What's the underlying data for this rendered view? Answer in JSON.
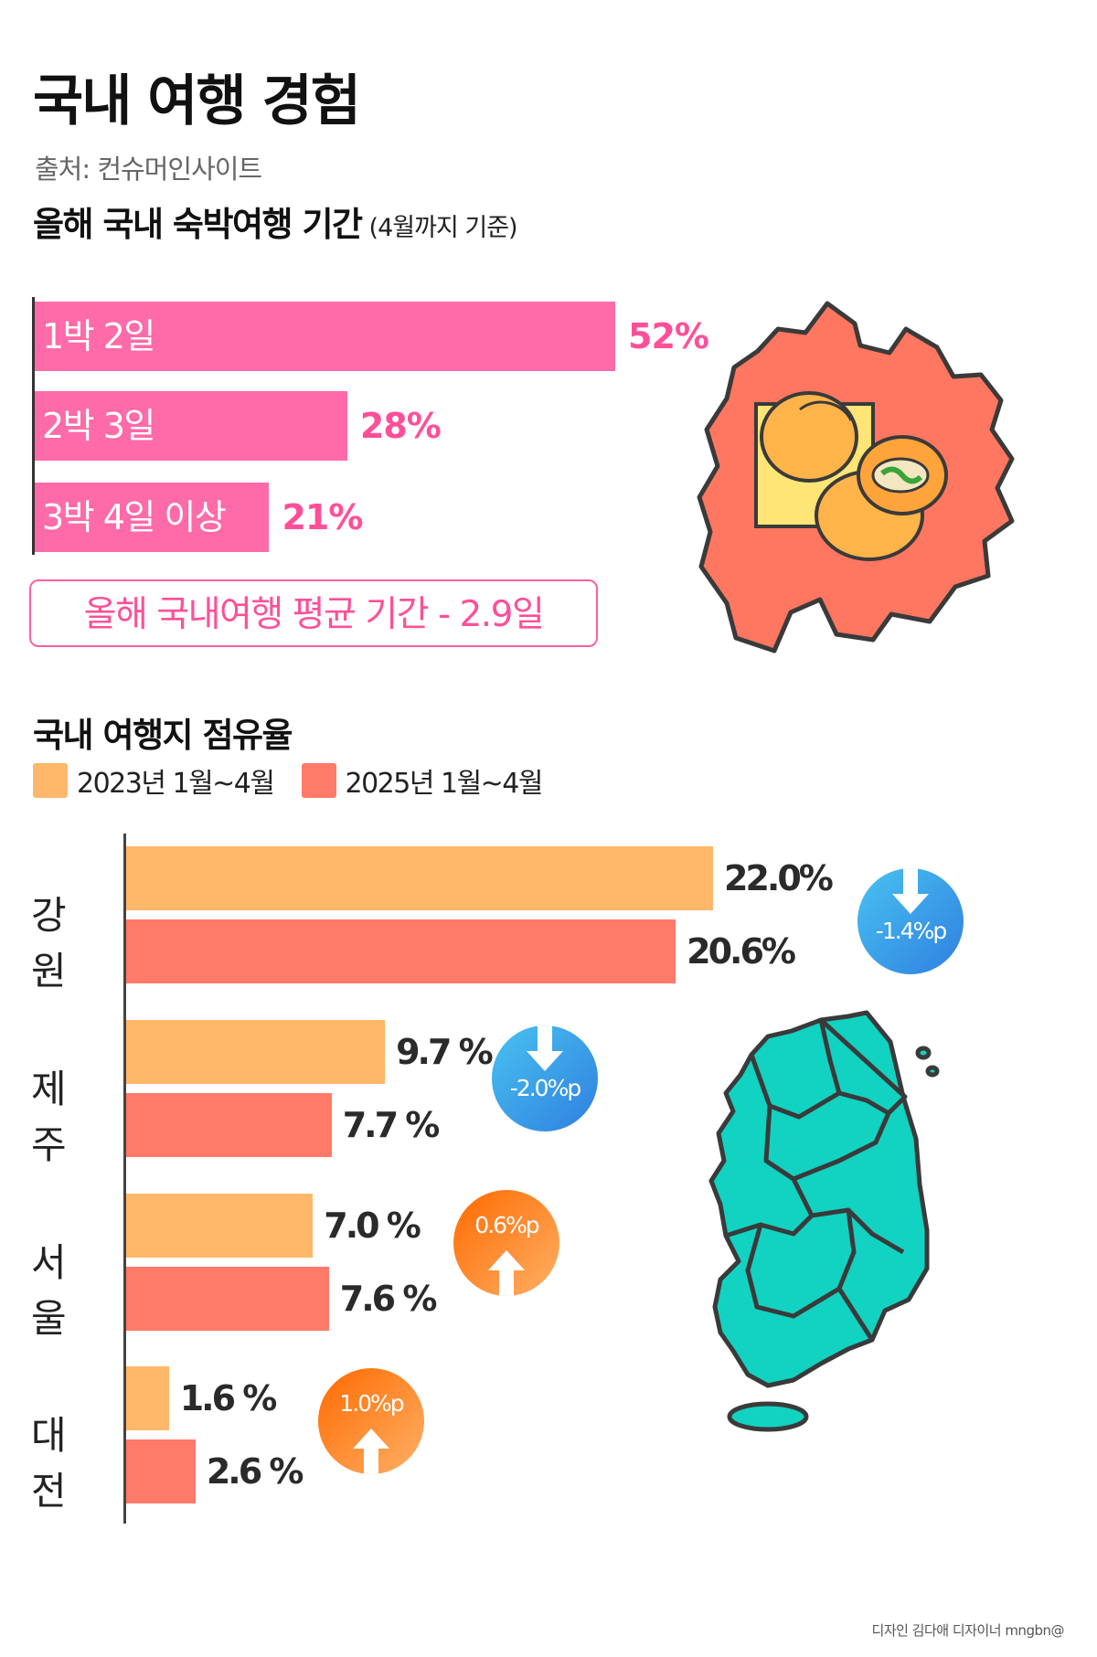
{
  "header": {
    "title": "국내 여행 경험",
    "source": "출처: 컨슈머인사이트"
  },
  "duration_section": {
    "title": "올해 국내 숙박여행 기간",
    "note": "(4월까지 기준)",
    "average_text": "올해 국내여행 평균 기간 - 2.9일"
  },
  "share_section": {
    "title": "국내 여행지 점유율",
    "legend": [
      {
        "label": "2023년 1월~4월",
        "color": "#ffb769"
      },
      {
        "label": "2025년 1월~4월",
        "color": "#ff7a68"
      }
    ]
  },
  "chart_data": [
    {
      "type": "bar",
      "orientation": "horizontal",
      "title": "올해 국내 숙박여행 기간",
      "categories": [
        "1박 2일",
        "2박 3일",
        "3박 4일 이상"
      ],
      "values": [
        52,
        28,
        21
      ],
      "value_labels": [
        "52%",
        "28%",
        "21%"
      ],
      "unit": "%",
      "color": "#ff6aa8"
    },
    {
      "type": "bar",
      "orientation": "horizontal",
      "title": "국내 여행지 점유율",
      "categories": [
        "강원",
        "제주",
        "서울",
        "대전"
      ],
      "series": [
        {
          "name": "2023년 1월~4월",
          "values": [
            22.0,
            9.7,
            7.0,
            1.6
          ],
          "labels": [
            "22.0%",
            "9.7 %",
            "7.0 %",
            "1.6 %"
          ]
        },
        {
          "name": "2025년 1월~4월",
          "values": [
            20.6,
            7.7,
            7.6,
            2.6
          ],
          "labels": [
            "20.6%",
            "7.7 %",
            "7.6 %",
            "2.6 %"
          ]
        }
      ],
      "changes": [
        {
          "text": "-1.4%p",
          "direction": "down"
        },
        {
          "text": "-2.0%p",
          "direction": "down"
        },
        {
          "text": "0.6%p",
          "direction": "up"
        },
        {
          "text": "1.0%p",
          "direction": "up"
        }
      ],
      "unit": "%"
    }
  ],
  "footer": {
    "credit": "디자인 김다애 디자이너 mngbn@"
  },
  "illustrations": [
    {
      "name": "gangwon-province-map-illustration",
      "color": "#ff7760"
    },
    {
      "name": "potato-bread-icon",
      "color": "#ffb44a"
    },
    {
      "name": "korea-map-illustration",
      "color": "#12d2c2"
    }
  ]
}
